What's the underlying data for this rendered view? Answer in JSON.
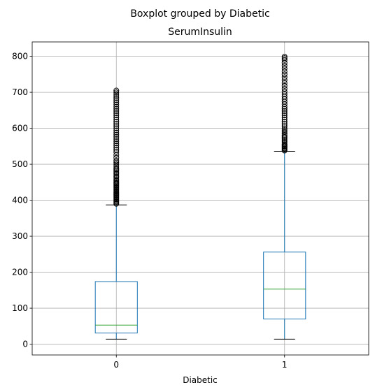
{
  "chart_data": {
    "type": "boxplot",
    "suptitle": "Boxplot grouped by Diabetic",
    "title": "SerumInsulin",
    "xlabel": "Diabetic",
    "ylabel": "",
    "categories": [
      "0",
      "1"
    ],
    "ylim": [
      -30,
      840
    ],
    "yticks": [
      0,
      100,
      200,
      300,
      400,
      500,
      600,
      700,
      800
    ],
    "grid": true,
    "boxes": [
      {
        "category": "0",
        "whisker_low": 14,
        "q1": 31,
        "median": 53,
        "q3": 174,
        "whisker_high": 387,
        "outliers": [
          390,
          393,
          396,
          399,
          402,
          405,
          408,
          411,
          414,
          417,
          420,
          423,
          426,
          429,
          432,
          435,
          438,
          441,
          444,
          447,
          450,
          454,
          458,
          462,
          466,
          470,
          474,
          478,
          482,
          486,
          490,
          495,
          500,
          505,
          510,
          518,
          526,
          534,
          540,
          546,
          552,
          558,
          564,
          570,
          576,
          582,
          588,
          594,
          600,
          606,
          612,
          618,
          624,
          630,
          636,
          642,
          648,
          654,
          660,
          666,
          672,
          678,
          684,
          690,
          695,
          700,
          705
        ]
      },
      {
        "category": "1",
        "whisker_low": 14,
        "q1": 70,
        "median": 153,
        "q3": 256,
        "whisker_high": 536,
        "outliers": [
          538,
          541,
          544,
          547,
          550,
          553,
          556,
          560,
          564,
          568,
          572,
          576,
          580,
          585,
          590,
          595,
          600,
          606,
          612,
          618,
          624,
          630,
          636,
          642,
          648,
          654,
          660,
          667,
          674,
          681,
          688,
          695,
          702,
          710,
          718,
          726,
          734,
          742,
          750,
          758,
          766,
          774,
          782,
          790,
          795,
          799
        ]
      }
    ],
    "colors": {
      "box": "#1f77b4",
      "median": "#2ca02c",
      "cap": "#000000",
      "grid": "#b0b0b0",
      "outlier": "#000000"
    }
  }
}
